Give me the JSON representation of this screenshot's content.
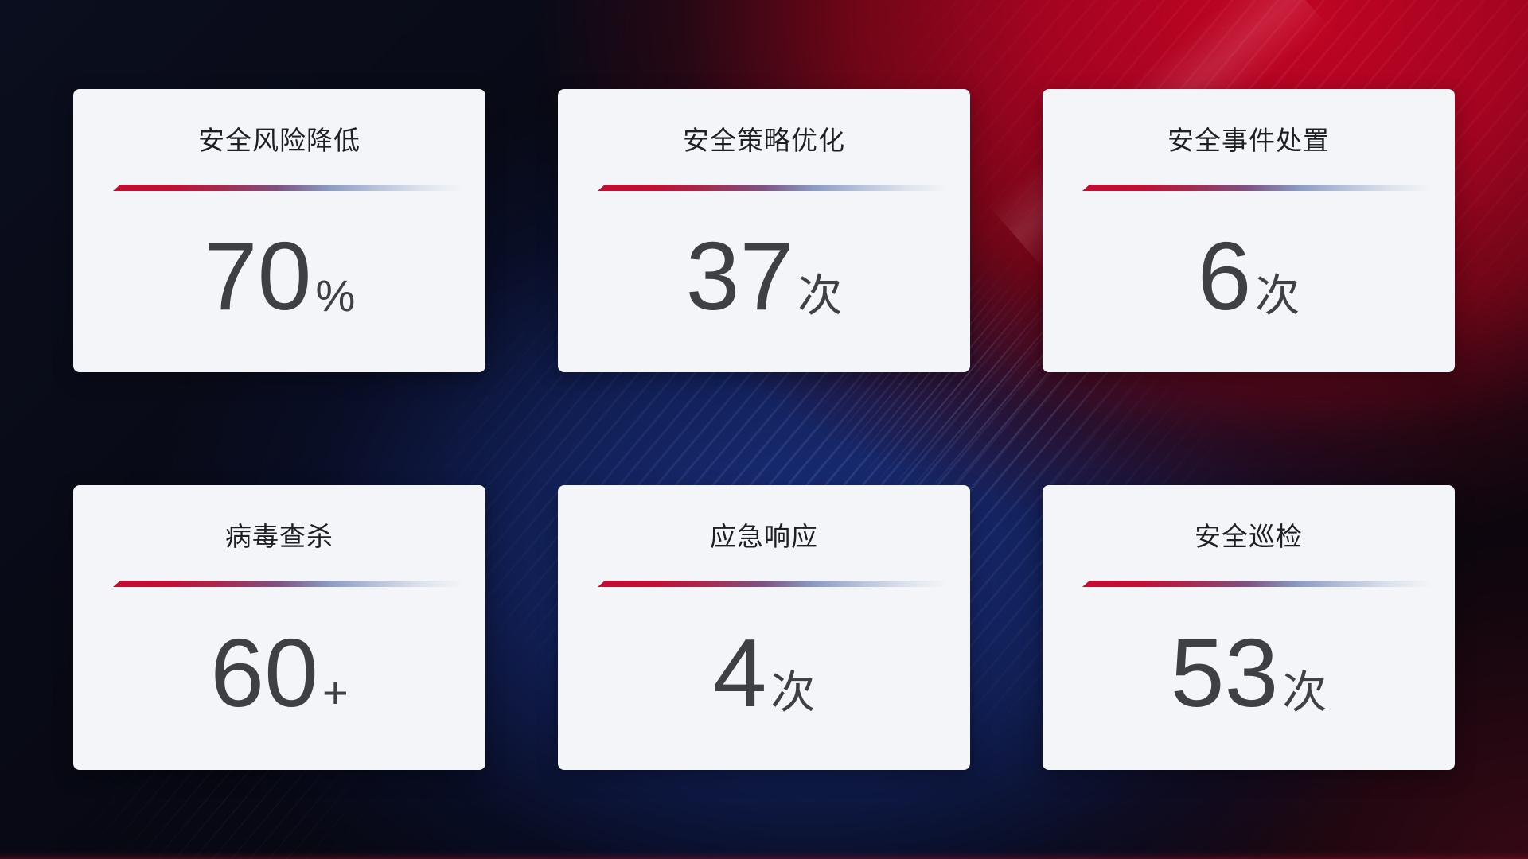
{
  "cards": [
    {
      "title": "安全风险降低",
      "value": "70",
      "unit": "%"
    },
    {
      "title": "安全策略优化",
      "value": "37",
      "unit": "次"
    },
    {
      "title": "安全事件处置",
      "value": "6",
      "unit": "次"
    },
    {
      "title": "病毒查杀",
      "value": "60",
      "unit": "+"
    },
    {
      "title": "应急响应",
      "value": "4",
      "unit": "次"
    },
    {
      "title": "安全巡检",
      "value": "53",
      "unit": "次"
    }
  ],
  "theme": {
    "background_base": "#07080f",
    "background_red": "#c20424",
    "background_blue": "#1b3080",
    "background_maroon": "#2b060d",
    "card_background": "#f4f5f8",
    "title_color": "#1e1f23",
    "value_color": "#3f4044",
    "divider_red": "#c30d31",
    "divider_purple": "#7d5280",
    "divider_blue": "#9fb0d0"
  }
}
